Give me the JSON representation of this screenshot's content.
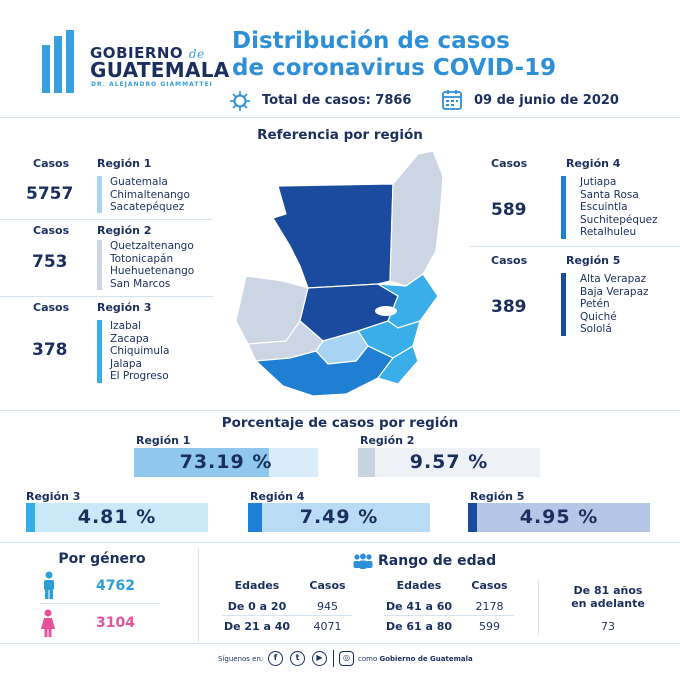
{
  "header": {
    "logo_line1": "GOBIERNO",
    "logo_de": "de",
    "logo_line2": "GUATEMALA",
    "logo_line3": "DR. ALEJANDRO GIAMMATTEI",
    "title_line1": "Distribución de casos",
    "title_line2": "de coronavirus COVID-19",
    "total_label": "Total de casos: 7866",
    "date": "09 de junio de 2020"
  },
  "referencia": {
    "title": "Referencia por región",
    "cases_header": "Casos",
    "regions": [
      {
        "name": "Región 1",
        "cases": "5757",
        "color": "#a8d3f2",
        "departments": [
          "Guatemala",
          "Chimaltenango",
          "Sacatepéquez"
        ]
      },
      {
        "name": "Región 2",
        "cases": "753",
        "color": "#cbd5e3",
        "departments": [
          "Quetzaltenango",
          "Totonicapán",
          "Huehuetenango",
          "San Marcos"
        ]
      },
      {
        "name": "Región 3",
        "cases": "378",
        "color": "#3aaee8",
        "departments": [
          "Izabal",
          "Zacapa",
          "Chiquimula",
          "Jalapa",
          "El Progreso"
        ]
      },
      {
        "name": "Región 4",
        "cases": "589",
        "color": "#1f7fd2",
        "departments": [
          "Jutiapa",
          "Santa Rosa",
          "Escuintla",
          "Suchitepéquez",
          "Retalhuleu"
        ]
      },
      {
        "name": "Región 5",
        "cases": "389",
        "color": "#1b4b9e",
        "departments": [
          "Alta Verapaz",
          "Baja Verapaz",
          "Petén",
          "Quiché",
          "Sololá"
        ]
      }
    ]
  },
  "porcentaje": {
    "title": "Porcentaje de casos por región",
    "items": [
      {
        "label": "Región 1",
        "value": "73.19 %",
        "fraction": 0.7319,
        "fill": "#8fc7ef",
        "bg": "#d9ecfa"
      },
      {
        "label": "Región 2",
        "value": "9.57 %",
        "fraction": 0.0957,
        "fill": "#c9d4e2",
        "bg": "#eef2f7"
      },
      {
        "label": "Región 3",
        "value": "4.81 %",
        "fraction": 0.0481,
        "fill": "#35aee8",
        "bg": "#c9e8f8"
      },
      {
        "label": "Región 4",
        "value": "7.49 %",
        "fraction": 0.0749,
        "fill": "#1f7fd2",
        "bg": "#b9dbf4"
      },
      {
        "label": "Región 5",
        "value": "4.95 %",
        "fraction": 0.0495,
        "fill": "#1b4b9e",
        "bg": "#b4c7e6"
      }
    ]
  },
  "genero": {
    "title": "Por género",
    "male": "4762",
    "female": "3104",
    "male_color": "#2a9fd8",
    "female_color": "#e8509a"
  },
  "edad": {
    "title": "Rango de edad",
    "col_edades": "Edades",
    "col_casos": "Casos",
    "left": [
      {
        "range": "De 0 a 20",
        "cases": "945"
      },
      {
        "range": "De 21 a 40",
        "cases": "4071"
      }
    ],
    "right": [
      {
        "range": "De 41 a 60",
        "cases": "2178"
      },
      {
        "range": "De 61 a 80",
        "cases": "599"
      }
    ],
    "older_label_1": "De 81 años",
    "older_label_2": "en adelante",
    "older_cases": "73"
  },
  "footer": {
    "follow": "Síguenos en:",
    "as": "como",
    "account": "Gobierno de Guatemala",
    "icons": [
      "facebook-icon",
      "twitter-icon",
      "youtube-icon",
      "instagram-icon"
    ]
  }
}
